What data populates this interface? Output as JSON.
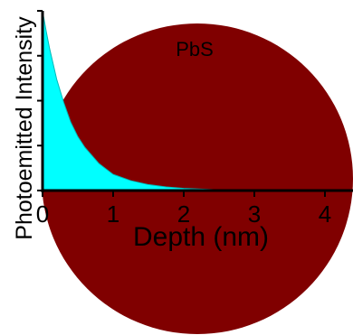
{
  "chart_data": {
    "type": "area",
    "title": "",
    "xlabel": "Depth (nm)",
    "ylabel": "Photoemitted Intensity",
    "xlim": [
      0,
      4.5
    ],
    "ylim": [
      0,
      1
    ],
    "x_ticks": [
      "0",
      "1",
      "2",
      "3",
      "4"
    ],
    "grid": false,
    "annotation": "PbS",
    "colors": {
      "fill": "#00ffff",
      "sphere": "#800000",
      "axis": "#000000"
    },
    "series": [
      {
        "x": [
          0,
          0.05,
          0.1,
          0.2,
          0.3,
          0.4,
          0.5,
          0.6,
          0.8,
          1.0,
          1.25,
          1.5,
          1.75,
          2.0,
          2.5,
          3.0,
          3.5,
          4.0,
          4.5
        ],
        "values": [
          1.0,
          0.89,
          0.79,
          0.62,
          0.49,
          0.38,
          0.3,
          0.24,
          0.15,
          0.09,
          0.055,
          0.033,
          0.02,
          0.012,
          0.004,
          0.002,
          0.001,
          0.0,
          0.0
        ]
      }
    ]
  }
}
